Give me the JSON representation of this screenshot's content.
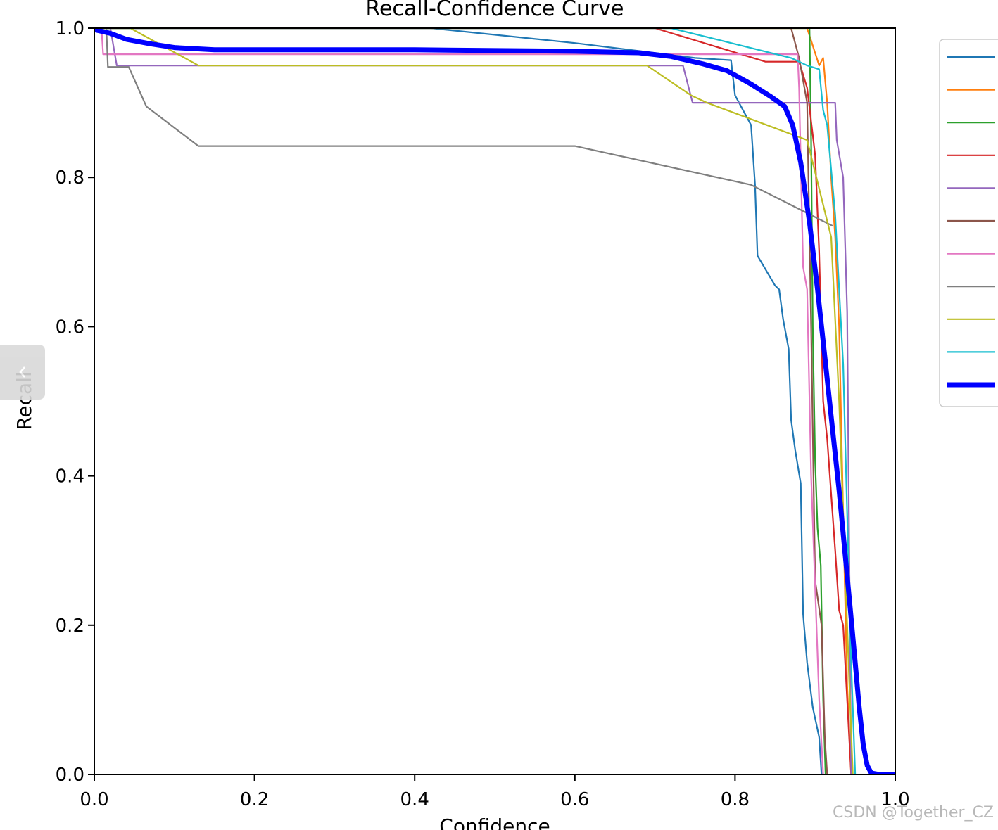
{
  "chart_data": {
    "type": "line",
    "title": "Recall-Confidence Curve",
    "xlabel": "Confidence",
    "ylabel": "Recall",
    "xlim": [
      0.0,
      1.0
    ],
    "ylim": [
      0.0,
      1.0
    ],
    "xticks": [
      "0.0",
      "0.2",
      "0.4",
      "0.6",
      "0.8",
      "1.0"
    ],
    "yticks": [
      "0.0",
      "0.2",
      "0.4",
      "0.6",
      "0.8",
      "1.0"
    ],
    "grid": false,
    "legend_position": "upper-right-outside",
    "series": [
      {
        "color": "#1f77b4",
        "width": 2.2,
        "points": [
          [
            0.0,
            1.0
          ],
          [
            0.42,
            1.0
          ],
          [
            0.6,
            0.98
          ],
          [
            0.75,
            0.96
          ],
          [
            0.795,
            0.957
          ],
          [
            0.8,
            0.91
          ],
          [
            0.81,
            0.89
          ],
          [
            0.82,
            0.87
          ],
          [
            0.825,
            0.79
          ],
          [
            0.828,
            0.695
          ],
          [
            0.85,
            0.655
          ],
          [
            0.855,
            0.65
          ],
          [
            0.86,
            0.61
          ],
          [
            0.867,
            0.57
          ],
          [
            0.87,
            0.475
          ],
          [
            0.875,
            0.435
          ],
          [
            0.882,
            0.39
          ],
          [
            0.885,
            0.215
          ],
          [
            0.89,
            0.15
          ],
          [
            0.897,
            0.09
          ],
          [
            0.905,
            0.05
          ],
          [
            0.908,
            0.0
          ]
        ]
      },
      {
        "color": "#ff7f0e",
        "width": 2.2,
        "points": [
          [
            0.0,
            1.0
          ],
          [
            0.89,
            1.0
          ],
          [
            0.905,
            0.95
          ],
          [
            0.91,
            0.96
          ],
          [
            0.915,
            0.9
          ],
          [
            0.92,
            0.8
          ],
          [
            0.925,
            0.72
          ],
          [
            0.93,
            0.6
          ],
          [
            0.935,
            0.35
          ],
          [
            0.94,
            0.12
          ],
          [
            0.945,
            0.0
          ]
        ]
      },
      {
        "color": "#2ca02c",
        "width": 2.2,
        "points": [
          [
            0.0,
            1.0
          ],
          [
            0.893,
            1.0
          ],
          [
            0.895,
            0.85
          ],
          [
            0.897,
            0.6
          ],
          [
            0.9,
            0.42
          ],
          [
            0.903,
            0.33
          ],
          [
            0.907,
            0.28
          ],
          [
            0.91,
            0.1
          ],
          [
            0.913,
            0.0
          ]
        ]
      },
      {
        "color": "#d62728",
        "width": 2.2,
        "points": [
          [
            0.0,
            1.0
          ],
          [
            0.7,
            1.0
          ],
          [
            0.838,
            0.955
          ],
          [
            0.88,
            0.955
          ],
          [
            0.89,
            0.92
          ],
          [
            0.9,
            0.83
          ],
          [
            0.905,
            0.7
          ],
          [
            0.91,
            0.5
          ],
          [
            0.915,
            0.45
          ],
          [
            0.925,
            0.3
          ],
          [
            0.93,
            0.22
          ],
          [
            0.935,
            0.2
          ],
          [
            0.94,
            0.1
          ],
          [
            0.945,
            0.0
          ]
        ]
      },
      {
        "color": "#9467bd",
        "width": 2.2,
        "points": [
          [
            0.0,
            1.0
          ],
          [
            0.02,
            1.0
          ],
          [
            0.028,
            0.95
          ],
          [
            0.735,
            0.95
          ],
          [
            0.747,
            0.9
          ],
          [
            0.925,
            0.9
          ],
          [
            0.927,
            0.85
          ],
          [
            0.935,
            0.8
          ],
          [
            0.94,
            0.62
          ],
          [
            0.945,
            0.0
          ]
        ]
      },
      {
        "color": "#8c564b",
        "width": 2.2,
        "points": [
          [
            0.0,
            1.0
          ],
          [
            0.87,
            1.0
          ],
          [
            0.88,
            0.96
          ],
          [
            0.89,
            0.9
          ],
          [
            0.895,
            0.6
          ],
          [
            0.9,
            0.26
          ],
          [
            0.908,
            0.2
          ],
          [
            0.912,
            0.05
          ],
          [
            0.915,
            0.0
          ]
        ]
      },
      {
        "color": "#e377c2",
        "width": 2.2,
        "points": [
          [
            0.0,
            1.0
          ],
          [
            0.009,
            1.0
          ],
          [
            0.011,
            0.965
          ],
          [
            0.878,
            0.965
          ],
          [
            0.88,
            0.92
          ],
          [
            0.885,
            0.68
          ],
          [
            0.89,
            0.65
          ],
          [
            0.895,
            0.4
          ],
          [
            0.9,
            0.25
          ],
          [
            0.905,
            0.1
          ],
          [
            0.91,
            0.0
          ]
        ]
      },
      {
        "color": "#7f7f7f",
        "width": 2.2,
        "points": [
          [
            0.0,
            1.0
          ],
          [
            0.015,
            1.0
          ],
          [
            0.017,
            0.948
          ],
          [
            0.043,
            0.948
          ],
          [
            0.065,
            0.895
          ],
          [
            0.13,
            0.842
          ],
          [
            0.6,
            0.842
          ],
          [
            0.82,
            0.79
          ],
          [
            0.922,
            0.735
          ]
        ]
      },
      {
        "color": "#bcbd22",
        "width": 2.2,
        "points": [
          [
            0.0,
            1.0
          ],
          [
            0.045,
            1.0
          ],
          [
            0.13,
            0.95
          ],
          [
            0.69,
            0.95
          ],
          [
            0.745,
            0.91
          ],
          [
            0.765,
            0.9
          ],
          [
            0.89,
            0.85
          ],
          [
            0.92,
            0.72
          ],
          [
            0.93,
            0.5
          ],
          [
            0.94,
            0.2
          ],
          [
            0.947,
            0.0
          ]
        ]
      },
      {
        "color": "#17becf",
        "width": 2.2,
        "points": [
          [
            0.0,
            1.0
          ],
          [
            0.72,
            1.0
          ],
          [
            0.87,
            0.96
          ],
          [
            0.89,
            0.95
          ],
          [
            0.905,
            0.945
          ],
          [
            0.91,
            0.89
          ],
          [
            0.915,
            0.87
          ],
          [
            0.925,
            0.75
          ],
          [
            0.93,
            0.65
          ],
          [
            0.935,
            0.55
          ],
          [
            0.94,
            0.35
          ],
          [
            0.945,
            0.15
          ],
          [
            0.95,
            0.0
          ]
        ]
      },
      {
        "color": "#0000ff",
        "width": 7,
        "points": [
          [
            0.0,
            0.998
          ],
          [
            0.02,
            0.993
          ],
          [
            0.04,
            0.985
          ],
          [
            0.07,
            0.979
          ],
          [
            0.1,
            0.974
          ],
          [
            0.15,
            0.971
          ],
          [
            0.4,
            0.971
          ],
          [
            0.6,
            0.969
          ],
          [
            0.68,
            0.967
          ],
          [
            0.72,
            0.962
          ],
          [
            0.76,
            0.952
          ],
          [
            0.79,
            0.943
          ],
          [
            0.82,
            0.925
          ],
          [
            0.845,
            0.908
          ],
          [
            0.862,
            0.895
          ],
          [
            0.872,
            0.87
          ],
          [
            0.882,
            0.82
          ],
          [
            0.893,
            0.74
          ],
          [
            0.903,
            0.65
          ],
          [
            0.912,
            0.56
          ],
          [
            0.922,
            0.46
          ],
          [
            0.93,
            0.38
          ],
          [
            0.937,
            0.3
          ],
          [
            0.944,
            0.22
          ],
          [
            0.95,
            0.15
          ],
          [
            0.955,
            0.09
          ],
          [
            0.96,
            0.04
          ],
          [
            0.965,
            0.012
          ],
          [
            0.97,
            0.002
          ],
          [
            0.98,
            0.0
          ],
          [
            1.0,
            0.0
          ]
        ]
      }
    ],
    "legend_items": [
      {
        "color": "#1f77b4",
        "width": 2.2
      },
      {
        "color": "#ff7f0e",
        "width": 2.2
      },
      {
        "color": "#2ca02c",
        "width": 2.2
      },
      {
        "color": "#d62728",
        "width": 2.2
      },
      {
        "color": "#9467bd",
        "width": 2.2
      },
      {
        "color": "#8c564b",
        "width": 2.2
      },
      {
        "color": "#e377c2",
        "width": 2.2
      },
      {
        "color": "#7f7f7f",
        "width": 2.2
      },
      {
        "color": "#bcbd22",
        "width": 2.2
      },
      {
        "color": "#17becf",
        "width": 2.2
      },
      {
        "color": "#0000ff",
        "width": 7
      }
    ]
  },
  "watermark": "CSDN @Together_CZ",
  "side_tab": {
    "icon": "chevron-left-icon"
  }
}
